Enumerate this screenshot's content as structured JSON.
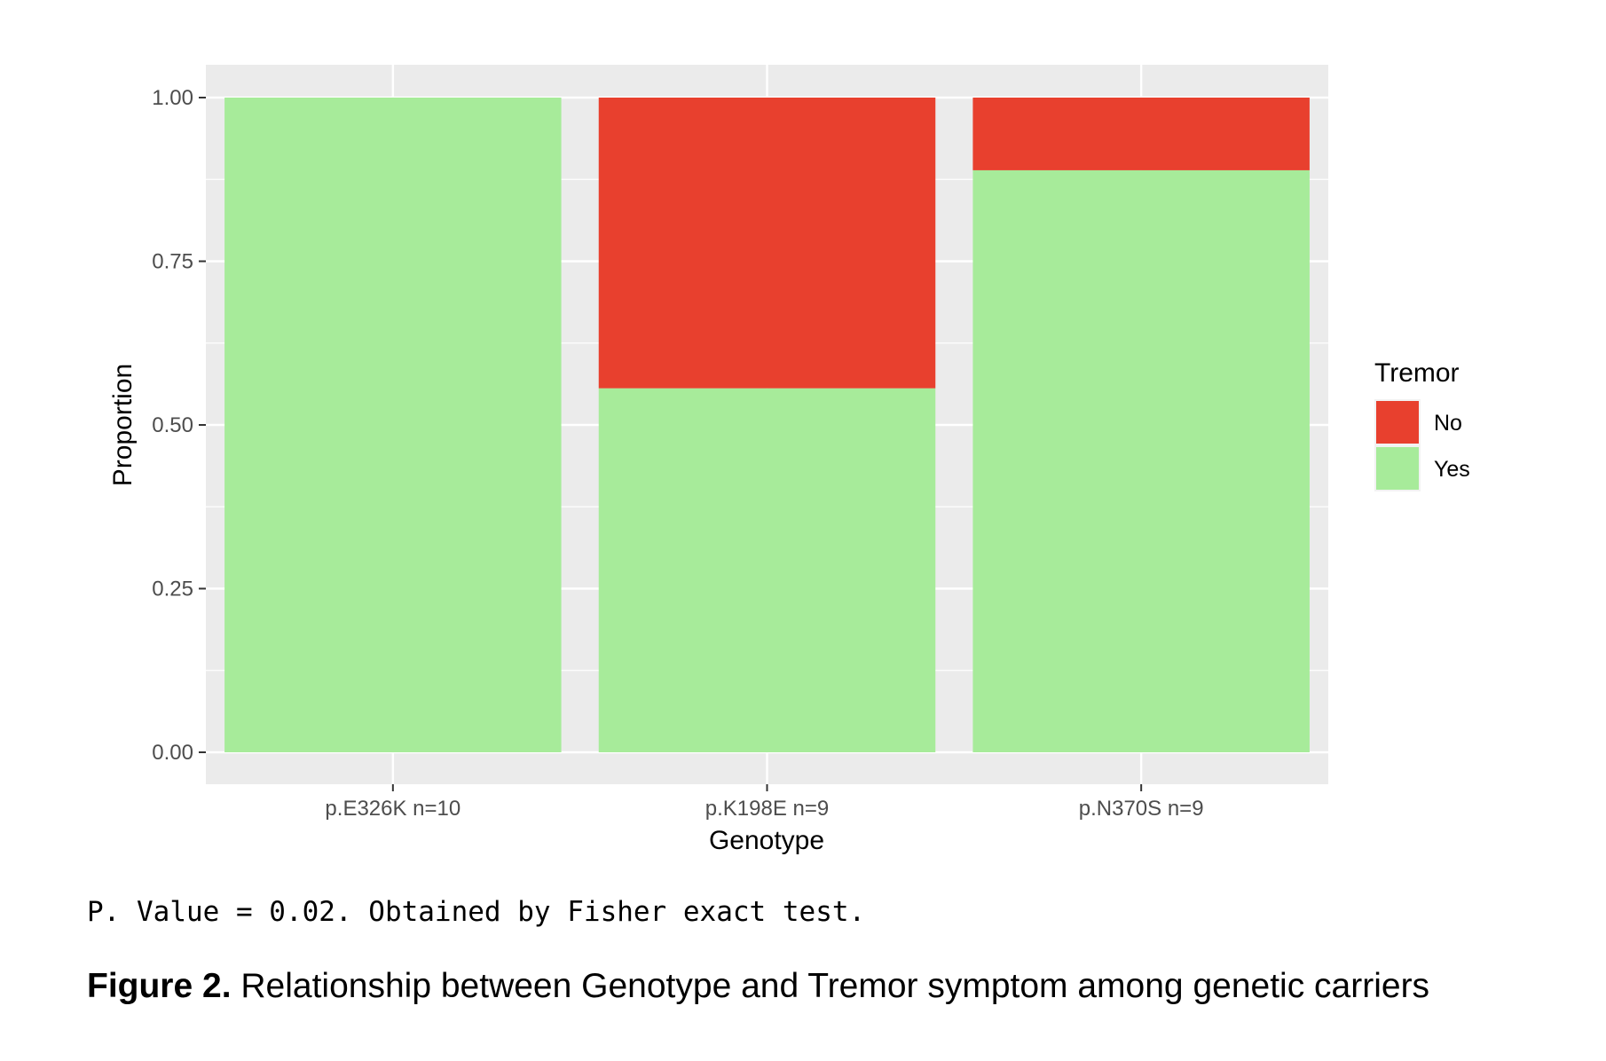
{
  "chart_data": {
    "type": "bar",
    "stacked": true,
    "xlabel": "Genotype",
    "ylabel": "Proportion",
    "categories": [
      "p.E326K n=10",
      "p.K198E n=9",
      "p.N370S n=9"
    ],
    "yticks": [
      "0.00",
      "0.25",
      "0.50",
      "0.75",
      "1.00"
    ],
    "ylim": [
      0,
      1
    ],
    "grid": true,
    "legend": {
      "title": "Tremor",
      "position": "right"
    },
    "series": [
      {
        "name": "No",
        "color": "#e8402e",
        "values": [
          0.0,
          0.444,
          0.111
        ]
      },
      {
        "name": "Yes",
        "color": "#a7eb9a",
        "values": [
          1.0,
          0.556,
          0.889
        ]
      }
    ]
  },
  "footnote": "P. Value = 0.02. Obtained by Fisher exact test.",
  "caption": {
    "label": "Figure 2.",
    "text": " Relationship between Genotype and Tremor symptom among genetic carriers"
  }
}
